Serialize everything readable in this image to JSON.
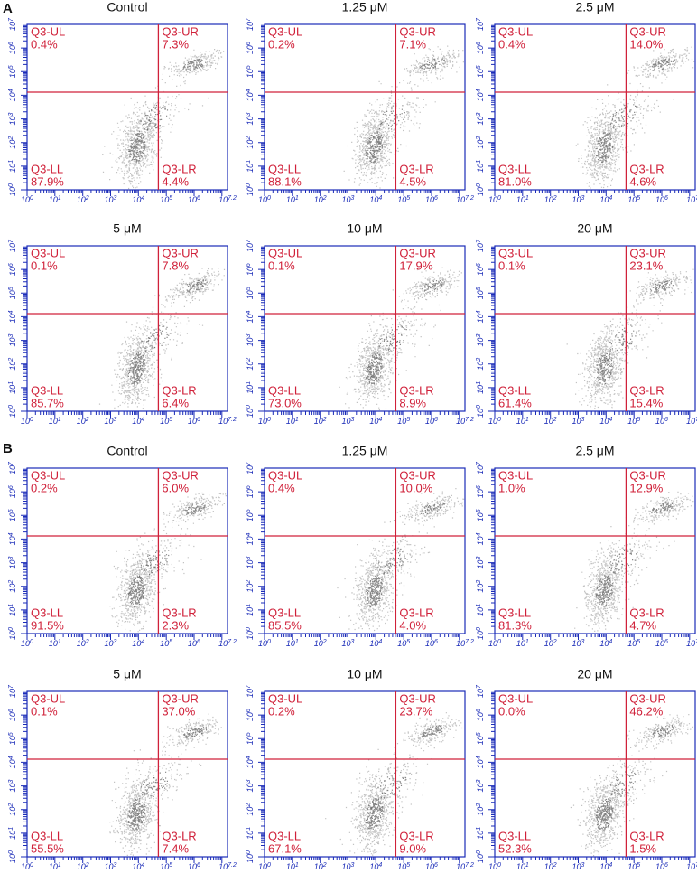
{
  "axis": {
    "base": "10",
    "x_exponents": [
      "0",
      "1",
      "2",
      "3",
      "4",
      "5",
      "6",
      "7.2"
    ],
    "y_exponents": [
      "0",
      "1",
      "2",
      "3",
      "4",
      "5",
      "6",
      "7"
    ]
  },
  "panels": [
    {
      "label": "A",
      "plots": [
        {
          "title": "Control",
          "quadrants": [
            {
              "name": "Q3-UL",
              "value": "0.4%"
            },
            {
              "name": "Q3-UR",
              "value": "7.3%"
            },
            {
              "name": "Q3-LL",
              "value": "87.9%"
            },
            {
              "name": "Q3-LR",
              "value": "4.4%"
            }
          ]
        },
        {
          "title": "1.25 μM",
          "quadrants": [
            {
              "name": "Q3-UL",
              "value": "0.2%"
            },
            {
              "name": "Q3-UR",
              "value": "7.1%"
            },
            {
              "name": "Q3-LL",
              "value": "88.1%"
            },
            {
              "name": "Q3-LR",
              "value": "4.5%"
            }
          ]
        },
        {
          "title": "2.5 μM",
          "quadrants": [
            {
              "name": "Q3-UL",
              "value": "0.4%"
            },
            {
              "name": "Q3-UR",
              "value": "14.0%"
            },
            {
              "name": "Q3-LL",
              "value": "81.0%"
            },
            {
              "name": "Q3-LR",
              "value": "4.6%"
            }
          ]
        },
        {
          "title": "5 μM",
          "quadrants": [
            {
              "name": "Q3-UL",
              "value": "0.1%"
            },
            {
              "name": "Q3-UR",
              "value": "7.8%"
            },
            {
              "name": "Q3-LL",
              "value": "85.7%"
            },
            {
              "name": "Q3-LR",
              "value": "6.4%"
            }
          ]
        },
        {
          "title": "10 μM",
          "quadrants": [
            {
              "name": "Q3-UL",
              "value": "0.1%"
            },
            {
              "name": "Q3-UR",
              "value": "17.9%"
            },
            {
              "name": "Q3-LL",
              "value": "73.0%"
            },
            {
              "name": "Q3-LR",
              "value": "8.9%"
            }
          ]
        },
        {
          "title": "20 μM",
          "quadrants": [
            {
              "name": "Q3-UL",
              "value": "0.1%"
            },
            {
              "name": "Q3-UR",
              "value": "23.1%"
            },
            {
              "name": "Q3-LL",
              "value": "61.4%"
            },
            {
              "name": "Q3-LR",
              "value": "15.4%"
            }
          ]
        }
      ]
    },
    {
      "label": "B",
      "plots": [
        {
          "title": "Control",
          "quadrants": [
            {
              "name": "Q3-UL",
              "value": "0.2%"
            },
            {
              "name": "Q3-UR",
              "value": "6.0%"
            },
            {
              "name": "Q3-LL",
              "value": "91.5%"
            },
            {
              "name": "Q3-LR",
              "value": "2.3%"
            }
          ]
        },
        {
          "title": "1.25 μM",
          "quadrants": [
            {
              "name": "Q3-UL",
              "value": "0.4%"
            },
            {
              "name": "Q3-UR",
              "value": "10.0%"
            },
            {
              "name": "Q3-LL",
              "value": "85.5%"
            },
            {
              "name": "Q3-LR",
              "value": "4.0%"
            }
          ]
        },
        {
          "title": "2.5 μM",
          "quadrants": [
            {
              "name": "Q3-UL",
              "value": "1.0%"
            },
            {
              "name": "Q3-UR",
              "value": "12.9%"
            },
            {
              "name": "Q3-LL",
              "value": "81.3%"
            },
            {
              "name": "Q3-LR",
              "value": "4.7%"
            }
          ]
        },
        {
          "title": "5 μM",
          "quadrants": [
            {
              "name": "Q3-UL",
              "value": "0.1%"
            },
            {
              "name": "Q3-UR",
              "value": "37.0%"
            },
            {
              "name": "Q3-LL",
              "value": "55.5%"
            },
            {
              "name": "Q3-LR",
              "value": "7.4%"
            }
          ]
        },
        {
          "title": "10 μM",
          "quadrants": [
            {
              "name": "Q3-UL",
              "value": "0.2%"
            },
            {
              "name": "Q3-UR",
              "value": "23.7%"
            },
            {
              "name": "Q3-LL",
              "value": "67.1%"
            },
            {
              "name": "Q3-LR",
              "value": "9.0%"
            }
          ]
        },
        {
          "title": "20 μM",
          "quadrants": [
            {
              "name": "Q3-UL",
              "value": "0.0%"
            },
            {
              "name": "Q3-UR",
              "value": "46.2%"
            },
            {
              "name": "Q3-LL",
              "value": "52.3%"
            },
            {
              "name": "Q3-LR",
              "value": "1.5%"
            }
          ]
        }
      ]
    }
  ]
}
